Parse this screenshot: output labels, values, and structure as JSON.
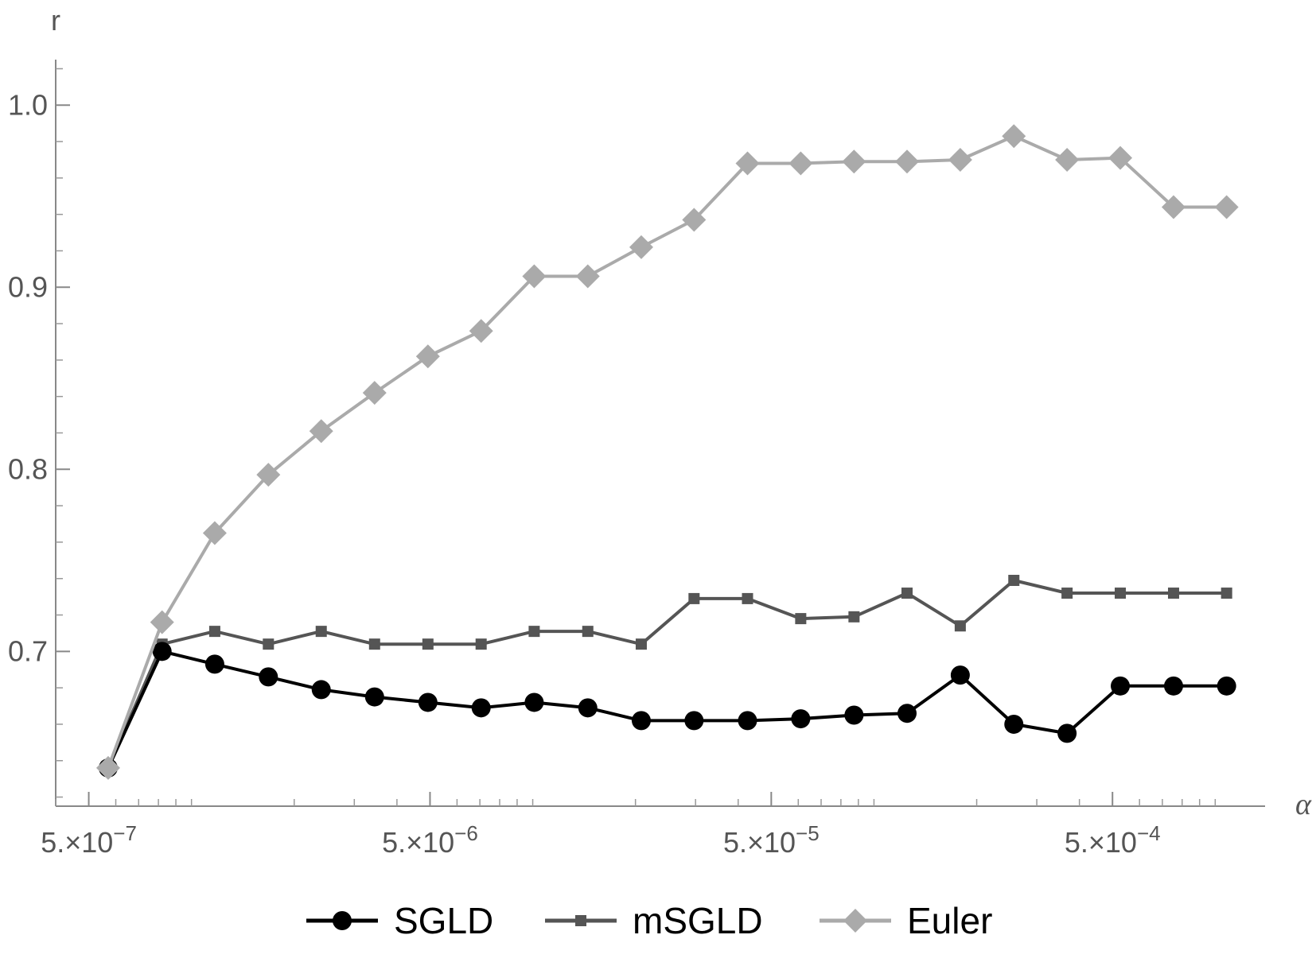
{
  "chart_data": {
    "type": "line",
    "title": "",
    "xlabel": "α",
    "ylabel": "r",
    "x_scale": "log",
    "xlim": [
      4e-07,
      0.0014
    ],
    "ylim": [
      0.615,
      1.025
    ],
    "x_ticks": [
      {
        "value": 5e-07,
        "label": "5.×10^-7",
        "mantissa": "5.",
        "exponent": "-7"
      },
      {
        "value": 5e-06,
        "label": "5.×10^-6",
        "mantissa": "5.",
        "exponent": "-6"
      },
      {
        "value": 5e-05,
        "label": "5.×10^-5",
        "mantissa": "5.",
        "exponent": "-5"
      },
      {
        "value": 0.0005,
        "label": "5.×10^-4",
        "mantissa": "5.",
        "exponent": "-4"
      }
    ],
    "y_ticks": [
      {
        "value": 0.7,
        "label": "0.7"
      },
      {
        "value": 0.8,
        "label": "0.8"
      },
      {
        "value": 0.9,
        "label": "0.9"
      },
      {
        "value": 1.0,
        "label": "1.0"
      }
    ],
    "grid": false,
    "legend_position": "bottom",
    "x": [
      5.7e-07,
      8.2e-07,
      1.17e-06,
      1.68e-06,
      2.4e-06,
      3.44e-06,
      4.93e-06,
      7.06e-06,
      1.01e-05,
      1.45e-05,
      2.08e-05,
      2.97e-05,
      4.26e-05,
      6.1e-05,
      8.74e-05,
      0.000125,
      0.000179,
      0.000257,
      0.000368,
      0.000527,
      0.000755,
      0.00108
    ],
    "series": [
      {
        "name": "SGLD",
        "color": "#000000",
        "marker": "circle",
        "values": [
          0.636,
          0.7,
          0.693,
          0.686,
          0.679,
          0.675,
          0.672,
          0.669,
          0.672,
          0.669,
          0.662,
          0.662,
          0.662,
          0.663,
          0.665,
          0.666,
          0.687,
          0.66,
          0.655,
          0.681,
          0.681,
          0.681
        ]
      },
      {
        "name": "mSGLD",
        "color": "#555555",
        "marker": "square",
        "values": [
          0.636,
          0.704,
          0.711,
          0.704,
          0.711,
          0.704,
          0.704,
          0.704,
          0.711,
          0.711,
          0.704,
          0.729,
          0.729,
          0.718,
          0.719,
          0.732,
          0.714,
          0.739,
          0.732,
          0.732,
          0.732,
          0.732
        ]
      },
      {
        "name": "Euler",
        "color": "#aaaaaa",
        "marker": "diamond",
        "values": [
          0.636,
          0.716,
          0.765,
          0.797,
          0.821,
          0.842,
          0.862,
          0.876,
          0.906,
          0.906,
          0.922,
          0.937,
          0.968,
          0.968,
          0.969,
          0.969,
          0.97,
          0.983,
          0.97,
          0.971,
          0.944,
          0.944
        ]
      }
    ]
  }
}
